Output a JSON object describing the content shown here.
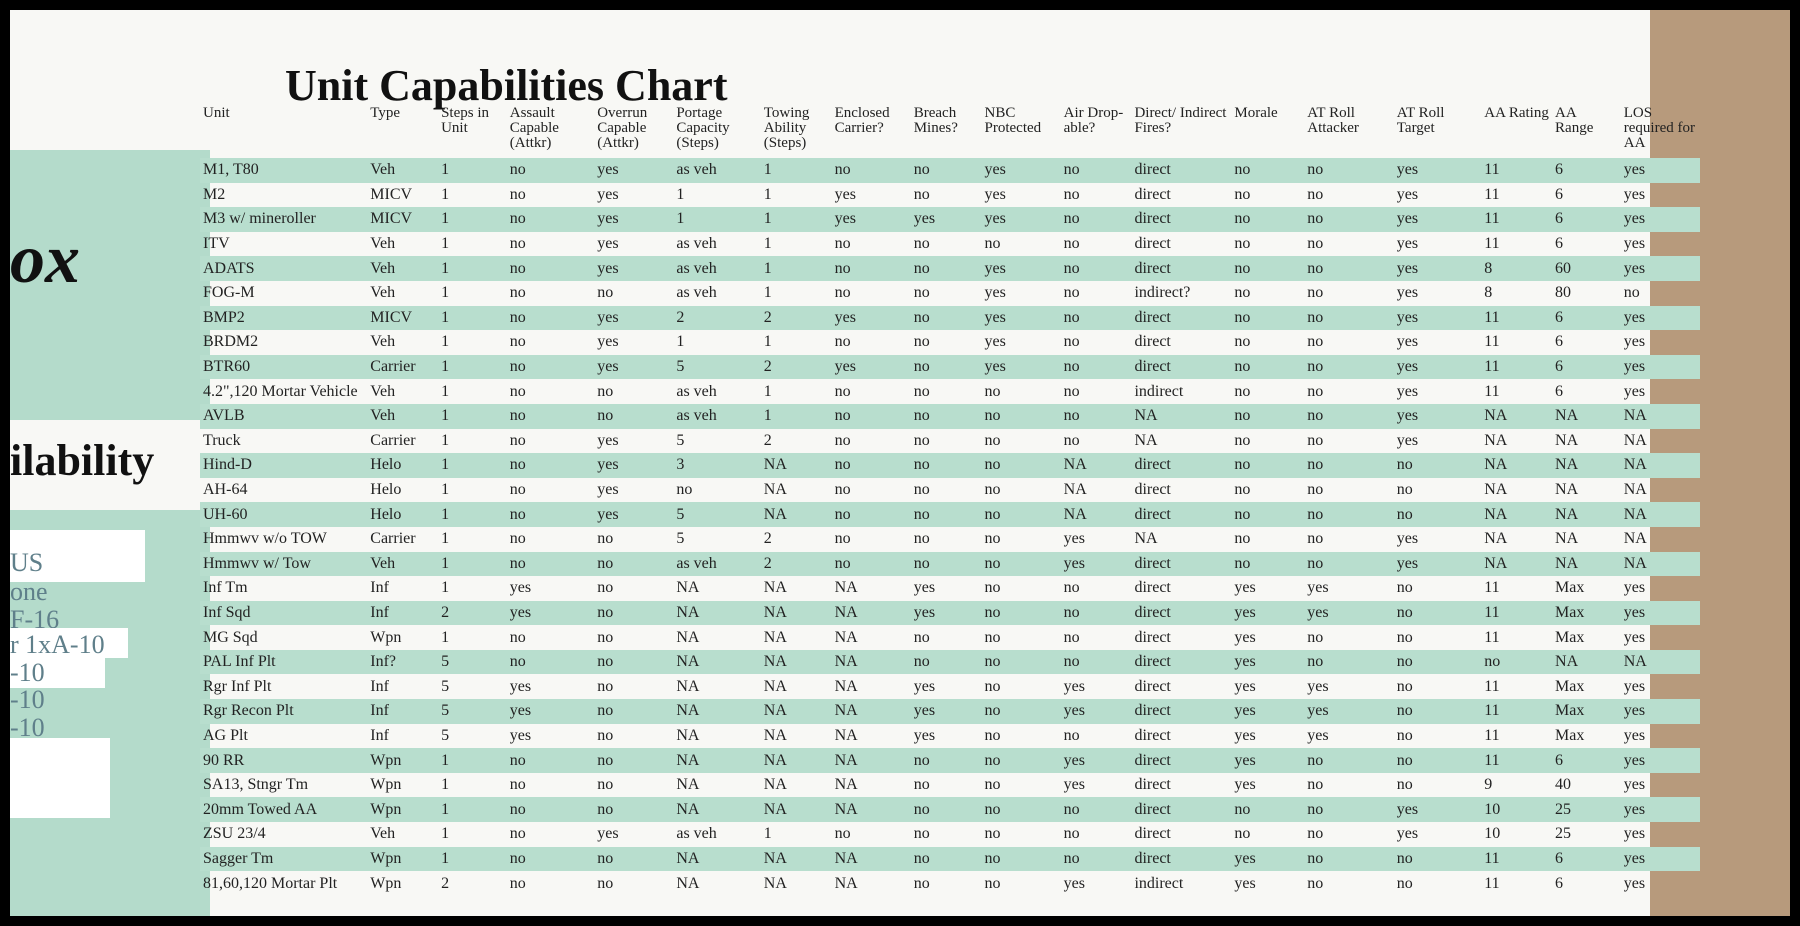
{
  "side_panel": {
    "texts": [
      "ox",
      "ilability",
      "US",
      "one",
      "F-16",
      "r 1xA-10",
      "-10",
      "-10",
      "-10"
    ]
  },
  "title": "Unit Capabilities Chart",
  "table": {
    "columns": [
      "Unit",
      "Type",
      "Steps in Unit",
      "Assault Capable (Attkr)",
      "Overrun Capable (Attkr)",
      "Portage Capacity (Steps)",
      "Towing Ability (Steps)",
      "Enclosed Carrier?",
      "Breach Mines?",
      "NBC Protected",
      "Air Drop-able?",
      "Direct/ Indirect Fires?",
      "Morale",
      "AT Roll Attacker",
      "AT Roll Target",
      "AA Rating",
      "AA Range",
      "LOS required for AA"
    ],
    "rows": [
      [
        "M1, T80",
        "Veh",
        "1",
        "no",
        "yes",
        "as veh",
        "1",
        "no",
        "no",
        "yes",
        "no",
        "direct",
        "no",
        "no",
        "yes",
        "11",
        "6",
        "yes"
      ],
      [
        "M2",
        "MICV",
        "1",
        "no",
        "yes",
        "1",
        "1",
        "yes",
        "no",
        "yes",
        "no",
        "direct",
        "no",
        "no",
        "yes",
        "11",
        "6",
        "yes"
      ],
      [
        "M3 w/ mineroller",
        "MICV",
        "1",
        "no",
        "yes",
        "1",
        "1",
        "yes",
        "yes",
        "yes",
        "no",
        "direct",
        "no",
        "no",
        "yes",
        "11",
        "6",
        "yes"
      ],
      [
        "ITV",
        "Veh",
        "1",
        "no",
        "yes",
        "as veh",
        "1",
        "no",
        "no",
        "no",
        "no",
        "direct",
        "no",
        "no",
        "yes",
        "11",
        "6",
        "yes"
      ],
      [
        "ADATS",
        "Veh",
        "1",
        "no",
        "yes",
        "as veh",
        "1",
        "no",
        "no",
        "yes",
        "no",
        "direct",
        "no",
        "no",
        "yes",
        "8",
        "60",
        "yes"
      ],
      [
        "FOG-M",
        "Veh",
        "1",
        "no",
        "no",
        "as veh",
        "1",
        "no",
        "no",
        "yes",
        "no",
        "indirect?",
        "no",
        "no",
        "yes",
        "8",
        "80",
        "no"
      ],
      [
        "BMP2",
        "MICV",
        "1",
        "no",
        "yes",
        "2",
        "2",
        "yes",
        "no",
        "yes",
        "no",
        "direct",
        "no",
        "no",
        "yes",
        "11",
        "6",
        "yes"
      ],
      [
        "BRDM2",
        "Veh",
        "1",
        "no",
        "yes",
        "1",
        "1",
        "no",
        "no",
        "yes",
        "no",
        "direct",
        "no",
        "no",
        "yes",
        "11",
        "6",
        "yes"
      ],
      [
        "BTR60",
        "Carrier",
        "1",
        "no",
        "yes",
        "5",
        "2",
        "yes",
        "no",
        "yes",
        "no",
        "direct",
        "no",
        "no",
        "yes",
        "11",
        "6",
        "yes"
      ],
      [
        "4.2\",120 Mortar Vehicle",
        "Veh",
        "1",
        "no",
        "no",
        "as veh",
        "1",
        "no",
        "no",
        "no",
        "no",
        "indirect",
        "no",
        "no",
        "yes",
        "11",
        "6",
        "yes"
      ],
      [
        "AVLB",
        "Veh",
        "1",
        "no",
        "no",
        "as veh",
        "1",
        "no",
        "no",
        "no",
        "no",
        "NA",
        "no",
        "no",
        "yes",
        "NA",
        "NA",
        "NA"
      ],
      [
        "Truck",
        "Carrier",
        "1",
        "no",
        "yes",
        "5",
        "2",
        "no",
        "no",
        "no",
        "no",
        "NA",
        "no",
        "no",
        "yes",
        "NA",
        "NA",
        "NA"
      ],
      [
        "Hind-D",
        "Helo",
        "1",
        "no",
        "yes",
        "3",
        "NA",
        "no",
        "no",
        "no",
        "NA",
        "direct",
        "no",
        "no",
        "no",
        "NA",
        "NA",
        "NA"
      ],
      [
        "AH-64",
        "Helo",
        "1",
        "no",
        "yes",
        "no",
        "NA",
        "no",
        "no",
        "no",
        "NA",
        "direct",
        "no",
        "no",
        "no",
        "NA",
        "NA",
        "NA"
      ],
      [
        "UH-60",
        "Helo",
        "1",
        "no",
        "yes",
        "5",
        "NA",
        "no",
        "no",
        "no",
        "NA",
        "direct",
        "no",
        "no",
        "no",
        "NA",
        "NA",
        "NA"
      ],
      [
        "Hmmwv w/o TOW",
        "Carrier",
        "1",
        "no",
        "no",
        "5",
        "2",
        "no",
        "no",
        "no",
        "yes",
        "NA",
        "no",
        "no",
        "yes",
        "NA",
        "NA",
        "NA"
      ],
      [
        "Hmmwv w/ Tow",
        "Veh",
        "1",
        "no",
        "no",
        "as veh",
        "2",
        "no",
        "no",
        "no",
        "yes",
        "direct",
        "no",
        "no",
        "yes",
        "NA",
        "NA",
        "NA"
      ],
      [
        "Inf Tm",
        "Inf",
        "1",
        "yes",
        "no",
        "NA",
        "NA",
        "NA",
        "yes",
        "no",
        "no",
        "direct",
        "yes",
        "yes",
        "no",
        "11",
        "Max",
        "yes"
      ],
      [
        "Inf Sqd",
        "Inf",
        "2",
        "yes",
        "no",
        "NA",
        "NA",
        "NA",
        "yes",
        "no",
        "no",
        "direct",
        "yes",
        "yes",
        "no",
        "11",
        "Max",
        "yes"
      ],
      [
        "MG Sqd",
        "Wpn",
        "1",
        "no",
        "no",
        "NA",
        "NA",
        "NA",
        "no",
        "no",
        "no",
        "direct",
        "yes",
        "no",
        "no",
        "11",
        "Max",
        "yes"
      ],
      [
        "PAL Inf Plt",
        "Inf?",
        "5",
        "no",
        "no",
        "NA",
        "NA",
        "NA",
        "no",
        "no",
        "no",
        "direct",
        "yes",
        "no",
        "no",
        "no",
        "NA",
        "NA"
      ],
      [
        "Rgr Inf Plt",
        "Inf",
        "5",
        "yes",
        "no",
        "NA",
        "NA",
        "NA",
        "yes",
        "no",
        "yes",
        "direct",
        "yes",
        "yes",
        "no",
        "11",
        "Max",
        "yes"
      ],
      [
        "Rgr Recon Plt",
        "Inf",
        "5",
        "yes",
        "no",
        "NA",
        "NA",
        "NA",
        "yes",
        "no",
        "yes",
        "direct",
        "yes",
        "yes",
        "no",
        "11",
        "Max",
        "yes"
      ],
      [
        "AG Plt",
        "Inf",
        "5",
        "yes",
        "no",
        "NA",
        "NA",
        "NA",
        "yes",
        "no",
        "no",
        "direct",
        "yes",
        "yes",
        "no",
        "11",
        "Max",
        "yes"
      ],
      [
        "90 RR",
        "Wpn",
        "1",
        "no",
        "no",
        "NA",
        "NA",
        "NA",
        "no",
        "no",
        "yes",
        "direct",
        "yes",
        "no",
        "no",
        "11",
        "6",
        "yes"
      ],
      [
        "SA13, Stngr Tm",
        "Wpn",
        "1",
        "no",
        "no",
        "NA",
        "NA",
        "NA",
        "no",
        "no",
        "yes",
        "direct",
        "yes",
        "no",
        "no",
        "9",
        "40",
        "yes"
      ],
      [
        "20mm Towed AA",
        "Wpn",
        "1",
        "no",
        "no",
        "NA",
        "NA",
        "NA",
        "no",
        "no",
        "no",
        "direct",
        "no",
        "no",
        "yes",
        "10",
        "25",
        "yes"
      ],
      [
        "ZSU 23/4",
        "Veh",
        "1",
        "no",
        "yes",
        "as veh",
        "1",
        "no",
        "no",
        "no",
        "no",
        "direct",
        "no",
        "no",
        "yes",
        "10",
        "25",
        "yes"
      ],
      [
        "Sagger Tm",
        "Wpn",
        "1",
        "no",
        "no",
        "NA",
        "NA",
        "NA",
        "no",
        "no",
        "no",
        "direct",
        "yes",
        "no",
        "no",
        "11",
        "6",
        "yes"
      ],
      [
        "81,60,120 Mortar Plt",
        "Wpn",
        "2",
        "no",
        "no",
        "NA",
        "NA",
        "NA",
        "no",
        "no",
        "yes",
        "indirect",
        "yes",
        "no",
        "no",
        "11",
        "6",
        "yes"
      ]
    ]
  }
}
